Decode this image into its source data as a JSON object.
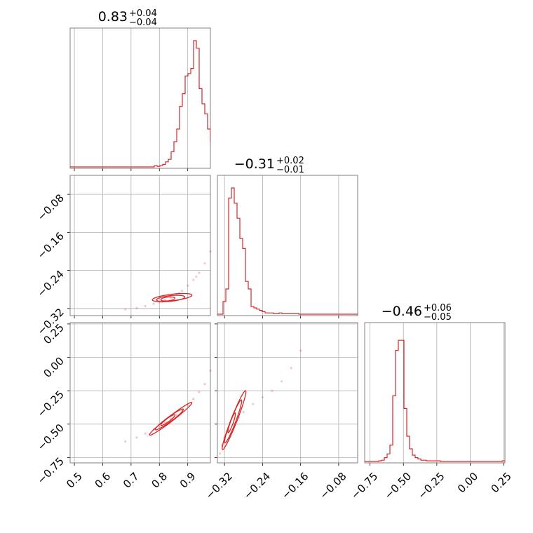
{
  "chart_data": {
    "type": "corner",
    "color": "#d62728",
    "grid": true,
    "parameters": [
      {
        "title": {
          "median": "0.83",
          "plus": "+0.04",
          "minus": "−0.04"
        },
        "range": [
          0.485,
          0.98
        ],
        "ticks": [
          0.5,
          0.6,
          0.7,
          0.8,
          0.9
        ],
        "tick_labels": [
          "0.5",
          "0.6",
          "0.7",
          "0.8",
          "0.9"
        ],
        "hist": {
          "bin_start": 0.485,
          "bin_width": 0.0099,
          "heights": [
            0,
            0,
            0,
            0,
            0,
            0,
            0,
            0,
            0,
            0,
            0,
            0,
            0,
            0,
            0,
            0,
            0,
            0,
            0,
            0,
            0,
            0,
            0,
            0,
            0,
            0,
            0,
            0,
            0,
            0,
            0.01,
            0.005,
            0.01,
            0.02,
            0.04,
            0.06,
            0.12,
            0.2,
            0.3,
            0.48,
            0.58,
            0.72,
            0.74,
            0.78,
            1.0,
            0.94,
            0.62,
            0.5,
            0.42,
            0.3,
            0.2,
            0.1,
            0.08,
            0.04,
            0.03,
            0.02,
            0.015,
            0.01,
            0.02,
            0.01
          ]
        }
      },
      {
        "title": {
          "median": "−0.31",
          "plus": "+0.02",
          "minus": "−0.01"
        },
        "range": [
          -0.335,
          -0.04
        ],
        "ticks": [
          -0.32,
          -0.24,
          -0.16,
          -0.08
        ],
        "tick_labels": [
          "−0.32",
          "−0.24",
          "−0.16",
          "−0.08"
        ],
        "hist": {
          "bin_start": -0.335,
          "bin_width": 0.0059,
          "heights": [
            0,
            0,
            0.1,
            0.2,
            0.92,
            1.0,
            0.88,
            0.76,
            0.6,
            0.52,
            0.26,
            0.2,
            0.06,
            0.05,
            0.04,
            0.03,
            0.02,
            0.01,
            0.01,
            0.01,
            0.005,
            0.005,
            0.01,
            0.005,
            0.005,
            0.005,
            0.005,
            0.005,
            0.005,
            0,
            0,
            0,
            0,
            0,
            0,
            0,
            0,
            0,
            0,
            0,
            0,
            0,
            0,
            0,
            0,
            0,
            0,
            0,
            0,
            0
          ]
        }
      },
      {
        "title": {
          "median": "−0.46",
          "plus": "+0.06",
          "minus": "−0.05"
        },
        "range": [
          -0.79,
          0.26
        ],
        "ticks": [
          -0.75,
          -0.5,
          -0.25,
          0.0,
          0.25
        ],
        "tick_labels": [
          "−0.75",
          "−0.50",
          "−0.25",
          "0.00",
          "0.25"
        ],
        "hist": {
          "bin_start": -0.79,
          "bin_width": 0.021,
          "heights": [
            0,
            0,
            0,
            0,
            0,
            0.005,
            0.01,
            0.03,
            0.06,
            0.13,
            0.52,
            0.88,
            0.96,
            0.96,
            0.42,
            0.2,
            0.1,
            0.05,
            0.03,
            0.02,
            0.01,
            0.01,
            0.005,
            0.005,
            0.005,
            0.005,
            0.005,
            0,
            0,
            0,
            0,
            0,
            0,
            0,
            0,
            0,
            0,
            0,
            0,
            0,
            0,
            0,
            0,
            0,
            0,
            0,
            0,
            0,
            0,
            0.005
          ]
        }
      }
    ],
    "scatter_2d": [
      {
        "x_param": 0,
        "y_param": 1,
        "x": [
          0.68,
          0.72,
          0.75,
          0.78,
          0.8,
          0.82,
          0.84,
          0.86,
          0.88,
          0.9,
          0.92,
          0.94,
          0.96,
          0.98,
          0.87,
          0.93,
          0.81
        ],
        "y": [
          -0.322,
          -0.319,
          -0.315,
          -0.31,
          -0.307,
          -0.302,
          -0.297,
          -0.29,
          -0.283,
          -0.272,
          -0.26,
          -0.245,
          -0.225,
          -0.2,
          -0.287,
          -0.253,
          -0.306
        ]
      },
      {
        "x_param": 0,
        "y_param": 2,
        "x": [
          0.68,
          0.72,
          0.75,
          0.78,
          0.8,
          0.82,
          0.84,
          0.86,
          0.88,
          0.9,
          0.92,
          0.94,
          0.96,
          0.98
        ],
        "y": [
          -0.63,
          -0.6,
          -0.57,
          -0.54,
          -0.52,
          -0.49,
          -0.46,
          -0.43,
          -0.4,
          -0.36,
          -0.31,
          -0.26,
          -0.2,
          -0.1
        ]
      },
      {
        "x_param": 1,
        "y_param": 2,
        "x": [
          -0.33,
          -0.325,
          -0.32,
          -0.31,
          -0.3,
          -0.29,
          -0.28,
          -0.26,
          -0.24,
          -0.22,
          -0.2,
          -0.18,
          -0.16
        ],
        "y": [
          -0.72,
          -0.66,
          -0.6,
          -0.55,
          -0.5,
          -0.45,
          -0.41,
          -0.35,
          -0.3,
          -0.25,
          -0.18,
          -0.08,
          0.05
        ]
      }
    ],
    "contours_2d": [
      {
        "x_param": 0,
        "y_param": 1,
        "levels": [
          {
            "cx": 0.83,
            "cy": -0.3,
            "rx": 0.025,
            "ry": 0.004,
            "slope": 0.06
          },
          {
            "cx": 0.84,
            "cy": -0.299,
            "rx": 0.05,
            "ry": 0.006,
            "slope": 0.06
          },
          {
            "cx": 0.845,
            "cy": -0.297,
            "rx": 0.07,
            "ry": 0.007,
            "slope": 0.07
          }
        ]
      },
      {
        "x_param": 0,
        "y_param": 2,
        "levels": [
          {
            "cx": 0.83,
            "cy": -0.47,
            "rx": 0.025,
            "ry": 0.015,
            "slope": 1.5
          },
          {
            "cx": 0.835,
            "cy": -0.465,
            "rx": 0.05,
            "ry": 0.022,
            "slope": 1.5
          },
          {
            "cx": 0.84,
            "cy": -0.46,
            "rx": 0.075,
            "ry": 0.025,
            "slope": 1.6
          }
        ]
      },
      {
        "x_param": 1,
        "y_param": 2,
        "levels": [
          {
            "cx": -0.305,
            "cy": -0.49,
            "rx": 0.008,
            "ry": 0.03,
            "slope": 8.5
          },
          {
            "cx": -0.302,
            "cy": -0.48,
            "rx": 0.018,
            "ry": 0.05,
            "slope": 8.5
          },
          {
            "cx": -0.3,
            "cy": -0.47,
            "rx": 0.025,
            "ry": 0.06,
            "slope": 8.5
          }
        ]
      }
    ]
  }
}
